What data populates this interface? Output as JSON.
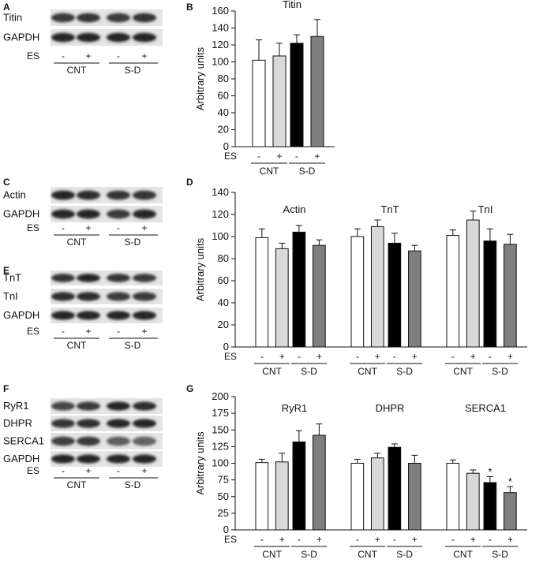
{
  "panels": {
    "A": {
      "letter": "A",
      "bands": [
        "Titin",
        "GAPDH"
      ],
      "es_label": "ES",
      "lane_signs": [
        "-",
        "+",
        "-",
        "+"
      ],
      "groups": [
        "CNT",
        "S-D"
      ]
    },
    "C": {
      "letter": "C",
      "bands": [
        "Actin",
        "GAPDH"
      ],
      "es_label": "ES",
      "lane_signs": [
        "-",
        "+",
        "-",
        "+"
      ],
      "groups": [
        "CNT",
        "S-D"
      ]
    },
    "E": {
      "letter": "E",
      "bands": [
        "TnT",
        "TnI",
        "GAPDH"
      ],
      "es_label": "ES",
      "lane_signs": [
        "-",
        "+",
        "-",
        "+"
      ],
      "groups": [
        "CNT",
        "S-D"
      ]
    },
    "F": {
      "letter": "F",
      "bands": [
        "RyR1",
        "DHPR",
        "SERCA1",
        "GAPDH"
      ],
      "es_label": "ES",
      "lane_signs": [
        "-",
        "+",
        "-",
        "+"
      ],
      "groups": [
        "CNT",
        "S-D"
      ]
    }
  },
  "colors": {
    "cnt_minus": "#ffffff",
    "cnt_plus": "#d9d9d9",
    "sd_minus": "#000000",
    "sd_plus": "#7f7f7f"
  },
  "chart_data": [
    {
      "panel": "B",
      "type": "bar",
      "ylabel": "Arbitrary units",
      "ylim": [
        0,
        160
      ],
      "yticks": [
        0,
        20,
        40,
        60,
        80,
        100,
        120,
        140,
        160
      ],
      "es_label": "ES",
      "bar_signs": [
        "-",
        "+",
        "-",
        "+"
      ],
      "group_labels": [
        "CNT",
        "S-D"
      ],
      "subplots": [
        {
          "title": "Titin",
          "values": [
            102,
            107,
            122,
            130
          ],
          "errors": [
            24,
            15,
            10,
            20
          ],
          "significant": [
            false,
            false,
            false,
            false
          ]
        }
      ]
    },
    {
      "panel": "D",
      "type": "bar",
      "ylabel": "Arbitrary units",
      "ylim": [
        0,
        140
      ],
      "yticks": [
        0,
        20,
        40,
        60,
        80,
        100,
        120,
        140
      ],
      "es_label": "ES",
      "bar_signs": [
        "-",
        "+",
        "-",
        "+"
      ],
      "group_labels": [
        "CNT",
        "S-D"
      ],
      "subplots": [
        {
          "title": "Actin",
          "values": [
            99,
            89,
            104,
            92
          ],
          "errors": [
            8,
            5,
            6,
            5
          ],
          "significant": [
            false,
            false,
            false,
            false
          ]
        },
        {
          "title": "TnT",
          "values": [
            100,
            109,
            94,
            87
          ],
          "errors": [
            7,
            6,
            9,
            5
          ],
          "significant": [
            false,
            false,
            false,
            false
          ]
        },
        {
          "title": "TnI",
          "values": [
            101,
            115,
            96,
            93
          ],
          "errors": [
            5,
            8,
            11,
            9
          ],
          "significant": [
            false,
            false,
            false,
            false
          ]
        }
      ]
    },
    {
      "panel": "G",
      "type": "bar",
      "ylabel": "Arbitrary units",
      "ylim": [
        0,
        200
      ],
      "yticks": [
        0,
        25,
        50,
        75,
        100,
        125,
        150,
        175,
        200
      ],
      "es_label": "ES",
      "bar_signs": [
        "-",
        "+",
        "-",
        "+"
      ],
      "group_labels": [
        "CNT",
        "S-D"
      ],
      "significance_marker": "*",
      "subplots": [
        {
          "title": "RyR1",
          "values": [
            101,
            102,
            132,
            142
          ],
          "errors": [
            5,
            13,
            17,
            17
          ],
          "significant": [
            false,
            false,
            false,
            false
          ]
        },
        {
          "title": "DHPR",
          "values": [
            100,
            108,
            124,
            100
          ],
          "errors": [
            6,
            7,
            5,
            12
          ],
          "significant": [
            false,
            false,
            false,
            false
          ]
        },
        {
          "title": "SERCA1",
          "values": [
            100,
            85,
            71,
            56
          ],
          "errors": [
            5,
            5,
            9,
            9
          ],
          "significant": [
            false,
            false,
            true,
            true
          ]
        }
      ]
    }
  ]
}
